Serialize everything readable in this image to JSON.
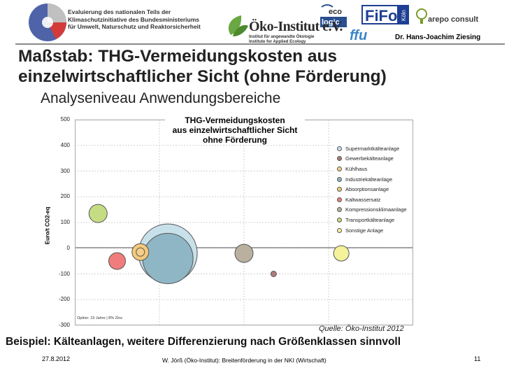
{
  "header": {
    "eval_text": "Evaluierung des nationalen Teils der\nKlimaschutzinitiative des Bundesministeriums\nfür Umwelt, Naturschutz und Reaktorsicherheit",
    "oeko_title": "Öko-Institut e.V.",
    "oeko_subtitle": "Institut für angewandte Ökologie\nInstitute for Applied Ecology",
    "ecologic_line1": "eco",
    "ecologic_line2": "logic",
    "fifo_label": "FiFo",
    "fifo_side": "Köln",
    "arepo_label": "arepo consult",
    "ffu_label": "ffu",
    "author": "Dr. Hans-Joachim Ziesing"
  },
  "slide": {
    "title": "Maßstab: THG-Vermeidungskosten aus\neinzelwirtschaftlicher Sicht (ohne Förderung)",
    "subtitle": "Analyseniveau Anwendungsbereiche",
    "source": "Quelle: Öko-Institut 2012",
    "example": "Beispiel: Kälteanlagen, weitere Differenzierung nach Größenklassen sinnvoll"
  },
  "footer": {
    "date": "27.8.2012",
    "center": "W. Jörß (Öko-Institut): Breitenförderung in der NKI (Wirtschaft)",
    "page": "11"
  },
  "chart_data": {
    "type": "scatter",
    "title": "THG-Vermeidungskosten\naus einzelwirtschaftlicher Sicht\nohne Förderung",
    "ylabel": "Euro/t CO2-eq",
    "ylim": [
      -300,
      500
    ],
    "yticks": [
      "500",
      "400",
      "300",
      "200",
      "100",
      "0",
      "-100",
      "-200",
      "-300"
    ],
    "note": "Option: 15 Jahre | 8% Zins",
    "grid": true,
    "legend_position": "right",
    "series": [
      {
        "name": "Supermarktkälteanlage",
        "x": 2.2,
        "y": -20,
        "size": 42,
        "color": "#c8e0ea"
      },
      {
        "name": "Gewerbekälteanlage",
        "x": 4.7,
        "y": -100,
        "size": 4,
        "color": "#b07a7a"
      },
      {
        "name": "Kühlhaus",
        "x": 1.55,
        "y": -15,
        "size": 6,
        "color": "#f5cf8a"
      },
      {
        "name": "Industriekälteanlage",
        "x": 2.2,
        "y": -40,
        "size": 36,
        "color": "#8fb6c4"
      },
      {
        "name": "Absorptionsanlage",
        "x": 1.55,
        "y": -15,
        "size": 12,
        "color": "#f4c97a"
      },
      {
        "name": "Kaltwassersatz",
        "x": 1.0,
        "y": -50,
        "size": 12,
        "color": "#f07d7b"
      },
      {
        "name": "Kompressionsklimaanlage",
        "x": 4.0,
        "y": -20,
        "size": 13,
        "color": "#b9b09f"
      },
      {
        "name": "Transportkälteanlage",
        "x": 0.55,
        "y": 135,
        "size": 13,
        "color": "#c6dc82"
      },
      {
        "name": "Sonstige Anlage",
        "x": 6.3,
        "y": -20,
        "size": 11,
        "color": "#f4f29a"
      }
    ]
  }
}
